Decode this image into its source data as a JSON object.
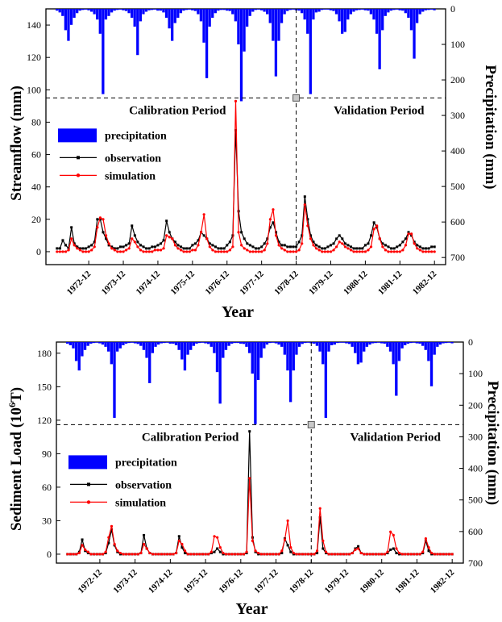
{
  "chart_data": [
    {
      "type": "line",
      "panel": "streamflow",
      "xlabel": "Year",
      "ylabel": "Streamflow (mm)",
      "y2label": "Precipitation (mm)",
      "ylim": [
        -8,
        150
      ],
      "y_ticks": [
        0,
        20,
        40,
        60,
        80,
        100,
        120,
        140
      ],
      "y2lim": [
        0,
        720
      ],
      "y2_ticks": [
        0,
        100,
        200,
        300,
        400,
        500,
        600,
        700
      ],
      "y2_inverted": true,
      "x_tick_labels": [
        "1972-12",
        "1973-12",
        "1974-12",
        "1975-12",
        "1976-12",
        "1977-12",
        "1978-12",
        "1979-12",
        "1980-12",
        "1981-12",
        "1982-12"
      ],
      "x_start": "1972-01",
      "divider_x": "1978-12",
      "divider_y": 95,
      "period_labels": {
        "left": "Calibration Period",
        "right": "Validation Period"
      },
      "legend": [
        "precipitation",
        "observation",
        "simulation"
      ],
      "colors": {
        "precipitation": "#0000ff",
        "observation": "#000000",
        "simulation": "#ff0000"
      },
      "series": [
        {
          "name": "precipitation",
          "kind": "bar",
          "axis": "y2",
          "values": [
            5,
            10,
            20,
            60,
            90,
            45,
            25,
            12,
            5,
            3,
            2,
            4,
            8,
            15,
            30,
            70,
            240,
            30,
            20,
            10,
            5,
            3,
            2,
            4,
            6,
            12,
            25,
            50,
            130,
            35,
            15,
            8,
            4,
            3,
            2,
            5,
            5,
            10,
            25,
            55,
            90,
            40,
            25,
            12,
            5,
            3,
            2,
            4,
            6,
            15,
            35,
            95,
            195,
            50,
            25,
            12,
            5,
            3,
            3,
            5,
            6,
            15,
            35,
            100,
            260,
            120,
            50,
            20,
            8,
            3,
            2,
            4,
            8,
            15,
            40,
            90,
            190,
            90,
            40,
            15,
            6,
            3,
            2,
            4,
            5,
            12,
            30,
            70,
            240,
            30,
            10,
            8,
            3,
            2,
            2,
            4,
            6,
            15,
            35,
            70,
            65,
            30,
            15,
            8,
            4,
            3,
            2,
            4,
            5,
            15,
            30,
            70,
            170,
            60,
            20,
            10,
            5,
            3,
            2,
            4,
            5,
            12,
            25,
            60,
            140,
            40,
            15,
            8,
            4,
            3,
            2,
            4
          ]
        },
        {
          "name": "observation",
          "kind": "line",
          "axis": "y",
          "values": [
            2,
            2,
            7,
            4,
            2,
            15,
            5,
            3,
            2,
            2,
            2,
            3,
            4,
            6,
            20,
            20,
            12,
            8,
            4,
            3,
            2,
            2,
            3,
            3,
            4,
            5,
            16,
            10,
            6,
            4,
            3,
            2,
            2,
            3,
            3,
            4,
            5,
            7,
            19,
            12,
            8,
            6,
            4,
            3,
            2,
            2,
            2,
            4,
            5,
            7,
            12,
            10,
            8,
            5,
            4,
            3,
            2,
            2,
            2,
            4,
            6,
            10,
            75,
            25,
            12,
            8,
            5,
            4,
            3,
            2,
            2,
            3,
            5,
            8,
            15,
            18,
            12,
            6,
            4,
            4,
            3,
            3,
            3,
            3,
            6,
            10,
            34,
            20,
            10,
            6,
            4,
            3,
            2,
            2,
            3,
            4,
            5,
            8,
            10,
            8,
            5,
            4,
            3,
            2,
            2,
            2,
            2,
            4,
            5,
            10,
            18,
            15,
            8,
            5,
            4,
            3,
            2,
            2,
            3,
            4,
            6,
            8,
            12,
            10,
            6,
            4,
            3,
            2,
            2,
            2,
            3,
            3
          ]
        },
        {
          "name": "simulation",
          "kind": "line",
          "axis": "y",
          "values": [
            0,
            0,
            0,
            0,
            1,
            8,
            4,
            2,
            1,
            0,
            0,
            0,
            1,
            3,
            15,
            21,
            20,
            10,
            5,
            2,
            1,
            0,
            0,
            0,
            1,
            2,
            8,
            6,
            3,
            1,
            0,
            0,
            0,
            0,
            1,
            1,
            1,
            2,
            10,
            9,
            8,
            4,
            2,
            1,
            0,
            0,
            0,
            1,
            1,
            4,
            12,
            23,
            8,
            3,
            1,
            0,
            0,
            0,
            0,
            0,
            1,
            3,
            93,
            12,
            4,
            2,
            1,
            0,
            0,
            0,
            0,
            0,
            1,
            5,
            20,
            26,
            10,
            4,
            2,
            1,
            0,
            0,
            0,
            0,
            1,
            5,
            29,
            16,
            8,
            4,
            2,
            1,
            0,
            0,
            0,
            0,
            1,
            3,
            6,
            5,
            3,
            2,
            1,
            0,
            0,
            0,
            0,
            0,
            1,
            3,
            14,
            16,
            8,
            3,
            1,
            0,
            0,
            0,
            0,
            0,
            1,
            4,
            11,
            11,
            5,
            2,
            1,
            0,
            0,
            0,
            0,
            0
          ]
        }
      ]
    },
    {
      "type": "line",
      "panel": "sediment",
      "xlabel": "Year",
      "ylabel": "Sediment Load (10",
      "ylabel_sup": "6",
      "ylabel_tail": "T)",
      "y2label": "Precipitation (mm)",
      "ylim": [
        -8,
        190
      ],
      "y_ticks": [
        0,
        30,
        60,
        90,
        120,
        150,
        180
      ],
      "y2lim": [
        0,
        700
      ],
      "y2_ticks": [
        0,
        100,
        200,
        300,
        400,
        500,
        600,
        700
      ],
      "y2_inverted": true,
      "x_tick_labels": [
        "1972-12",
        "1973-12",
        "1974-12",
        "1975-12",
        "1976-12",
        "1977-12",
        "1978-12",
        "1979-12",
        "1980-12",
        "1981-12",
        "1982-12"
      ],
      "x_start": "1972-01",
      "divider_x": "1978-12",
      "divider_y": 116,
      "period_labels": {
        "left": "Calibration Period",
        "right": "Validation Period"
      },
      "legend": [
        "precipitation",
        "observation",
        "simulation"
      ],
      "colors": {
        "precipitation": "#0000ff",
        "observation": "#000000",
        "simulation": "#ff0000"
      },
      "series": [
        {
          "name": "precipitation",
          "kind": "bar",
          "axis": "y2",
          "values": [
            5,
            10,
            20,
            60,
            90,
            45,
            25,
            12,
            5,
            3,
            2,
            4,
            8,
            15,
            30,
            70,
            240,
            30,
            20,
            10,
            5,
            3,
            2,
            4,
            6,
            12,
            25,
            50,
            130,
            35,
            15,
            8,
            4,
            3,
            2,
            5,
            5,
            10,
            25,
            55,
            90,
            40,
            25,
            12,
            5,
            3,
            2,
            4,
            6,
            15,
            35,
            95,
            195,
            50,
            25,
            12,
            5,
            3,
            3,
            5,
            6,
            15,
            35,
            100,
            260,
            120,
            50,
            20,
            8,
            3,
            2,
            4,
            8,
            15,
            40,
            90,
            190,
            90,
            40,
            15,
            6,
            3,
            2,
            4,
            5,
            12,
            30,
            70,
            240,
            30,
            10,
            8,
            3,
            2,
            2,
            4,
            6,
            15,
            35,
            70,
            65,
            30,
            15,
            8,
            4,
            3,
            2,
            4,
            5,
            15,
            30,
            70,
            170,
            60,
            20,
            10,
            5,
            3,
            2,
            4,
            5,
            12,
            25,
            60,
            140,
            40,
            15,
            8,
            4,
            3,
            2,
            4
          ]
        },
        {
          "name": "observation",
          "kind": "line",
          "axis": "y",
          "values": [
            0,
            0,
            0,
            0,
            2,
            13,
            3,
            1,
            0,
            0,
            0,
            0,
            0,
            1,
            10,
            22,
            8,
            2,
            0,
            0,
            0,
            0,
            0,
            0,
            0,
            1,
            17,
            5,
            1,
            0,
            0,
            0,
            0,
            0,
            0,
            0,
            0,
            1,
            16,
            6,
            1,
            0,
            0,
            0,
            0,
            0,
            0,
            0,
            0,
            1,
            2,
            5,
            2,
            0,
            0,
            0,
            0,
            0,
            0,
            0,
            0,
            1,
            110,
            15,
            2,
            0,
            0,
            0,
            0,
            0,
            0,
            0,
            0,
            1,
            14,
            8,
            2,
            0,
            0,
            0,
            0,
            0,
            0,
            0,
            0,
            1,
            33,
            5,
            1,
            0,
            0,
            0,
            0,
            0,
            0,
            0,
            0,
            1,
            5,
            7,
            1,
            0,
            0,
            0,
            0,
            0,
            0,
            0,
            0,
            1,
            4,
            5,
            1,
            0,
            0,
            0,
            0,
            0,
            0,
            0,
            0,
            1,
            12,
            3,
            0,
            0,
            0,
            0,
            0,
            0,
            0,
            0
          ]
        },
        {
          "name": "simulation",
          "kind": "line",
          "axis": "y",
          "values": [
            0,
            0,
            0,
            0,
            1,
            8,
            4,
            2,
            0,
            0,
            0,
            0,
            0,
            2,
            15,
            25,
            9,
            3,
            1,
            0,
            0,
            0,
            0,
            0,
            0,
            1,
            9,
            5,
            1,
            0,
            0,
            0,
            0,
            0,
            0,
            0,
            0,
            1,
            12,
            9,
            3,
            0,
            0,
            0,
            0,
            0,
            0,
            0,
            0,
            2,
            16,
            15,
            6,
            1,
            0,
            0,
            0,
            0,
            0,
            0,
            0,
            2,
            68,
            12,
            3,
            1,
            0,
            0,
            0,
            0,
            0,
            0,
            0,
            3,
            13,
            30,
            6,
            1,
            0,
            0,
            0,
            0,
            0,
            0,
            0,
            3,
            41,
            12,
            2,
            0,
            0,
            0,
            0,
            0,
            0,
            0,
            0,
            1,
            4,
            5,
            1,
            0,
            0,
            0,
            0,
            0,
            0,
            0,
            0,
            2,
            20,
            17,
            5,
            1,
            0,
            0,
            0,
            0,
            0,
            0,
            0,
            2,
            14,
            6,
            1,
            0,
            0,
            0,
            0,
            0,
            0,
            0
          ]
        }
      ]
    }
  ]
}
